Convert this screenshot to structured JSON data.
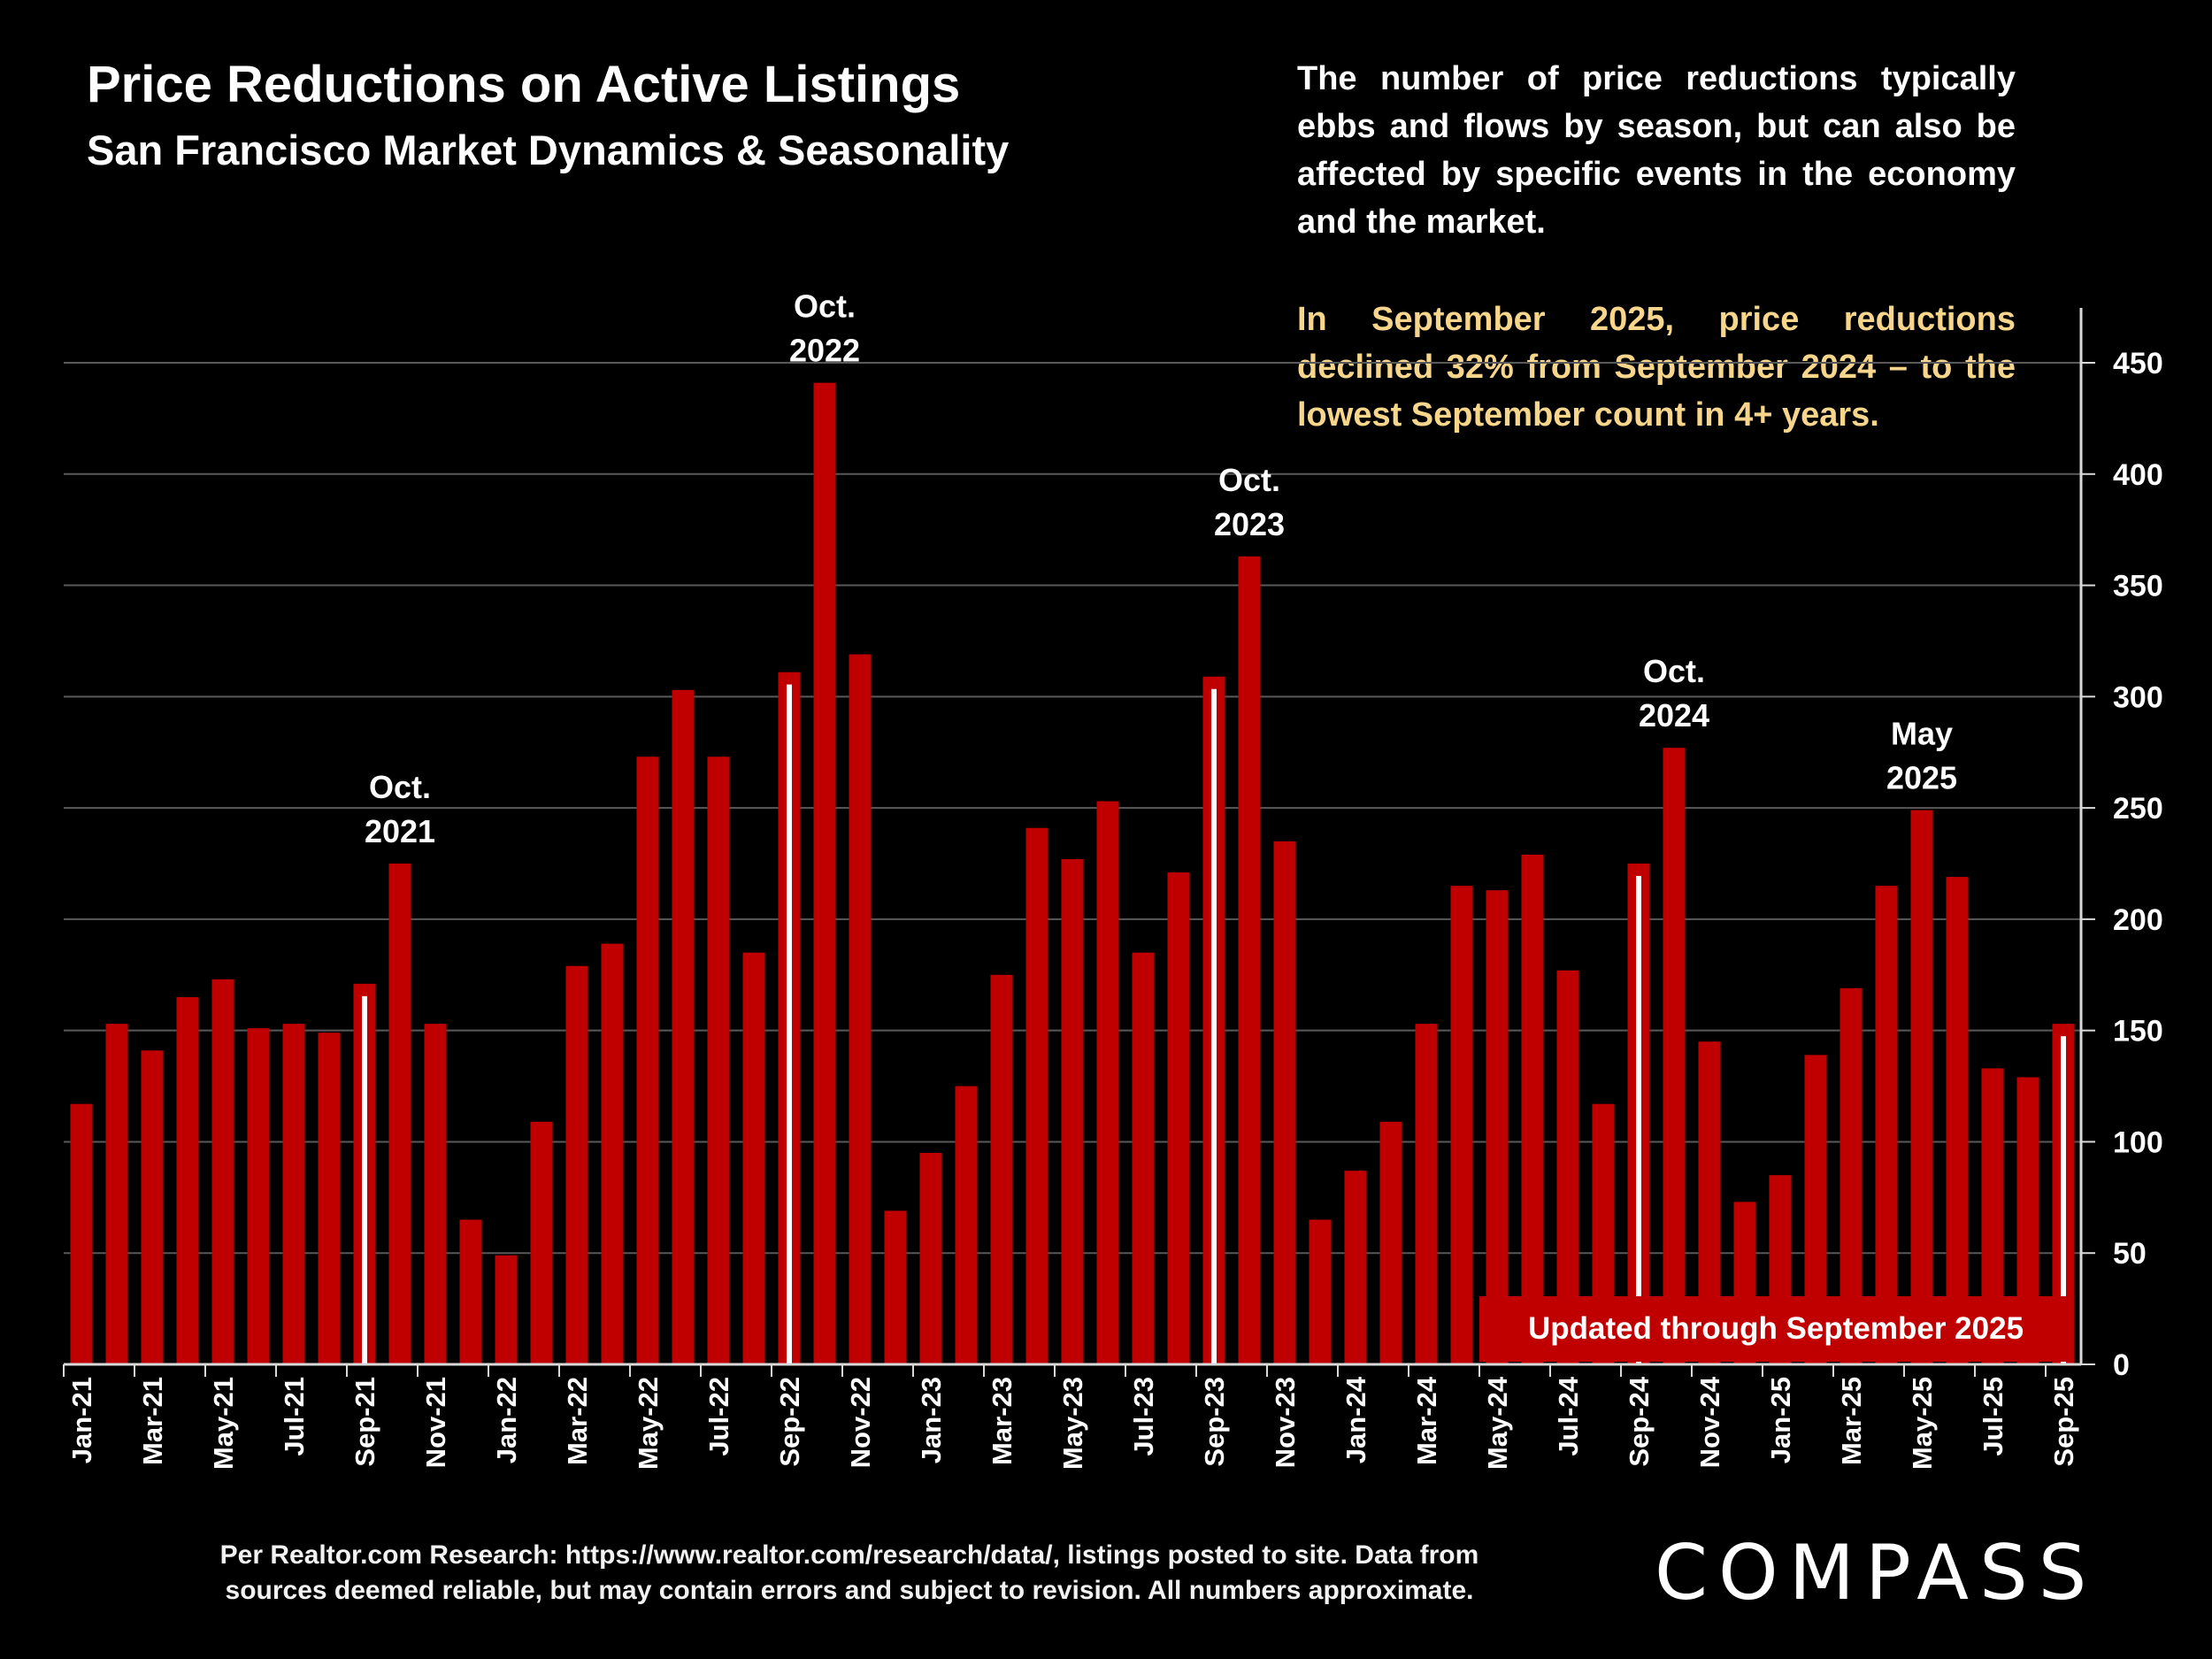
{
  "header": {
    "title": "Price Reductions on Active Listings",
    "subtitle": "San Francisco Market Dynamics & Seasonality"
  },
  "commentary": {
    "note": "The number of price reductions typically ebbs and flows by season, but can also be affected by specific events in the economy and the market.",
    "highlight": "In September 2025, price reductions declined 32% from September 2024 – to the lowest September count in 4+ years."
  },
  "badge": {
    "text": "Updated through September 2025"
  },
  "footer": {
    "source_line1": "Per Realtor.com Research:  https://www.realtor.com/research/data/, listings posted to site. Data from",
    "source_line2": "sources deemed reliable, but may contain errors and subject to revision. All numbers approximate.",
    "logo_text": "COMPASS"
  },
  "colors": {
    "background": "#000000",
    "bar": "#c00000",
    "highlight_text": "#f7d68c",
    "marker": "#ffffff",
    "grid": "#595959"
  },
  "chart_data": {
    "type": "bar",
    "title": "Price Reductions on Active Listings",
    "subtitle": "San Francisco Market Dynamics & Seasonality",
    "xlabel": "",
    "ylabel": "",
    "ylim": [
      0,
      450
    ],
    "yticks": [
      0,
      50,
      100,
      150,
      200,
      250,
      300,
      350,
      400,
      450
    ],
    "y_axis_side": "right",
    "grid": true,
    "categories": [
      "Jan-21",
      "Feb-21",
      "Mar-21",
      "Apr-21",
      "May-21",
      "Jun-21",
      "Jul-21",
      "Aug-21",
      "Sep-21",
      "Oct-21",
      "Nov-21",
      "Dec-21",
      "Jan-22",
      "Feb-22",
      "Mar-22",
      "Apr-22",
      "May-22",
      "Jun-22",
      "Jul-22",
      "Aug-22",
      "Sep-22",
      "Oct-22",
      "Nov-22",
      "Dec-22",
      "Jan-23",
      "Feb-23",
      "Mar-23",
      "Apr-23",
      "May-23",
      "Jun-23",
      "Jul-23",
      "Aug-23",
      "Sep-23",
      "Oct-23",
      "Nov-23",
      "Dec-23",
      "Jan-24",
      "Feb-24",
      "Mar-24",
      "Apr-24",
      "May-24",
      "Jun-24",
      "Jul-24",
      "Aug-24",
      "Sep-24",
      "Oct-24",
      "Nov-24",
      "Dec-24",
      "Jan-25",
      "Feb-25",
      "Mar-25",
      "Apr-25",
      "May-25",
      "Jun-25",
      "Jul-25",
      "Aug-25",
      "Sep-25"
    ],
    "tick_labels": [
      "Jan-21",
      "Mar-21",
      "May-21",
      "Jul-21",
      "Sep-21",
      "Nov-21",
      "Jan-22",
      "Mar-22",
      "May-22",
      "Jul-22",
      "Sep-22",
      "Nov-22",
      "Jan-23",
      "Mar-23",
      "May-23",
      "Jul-23",
      "Sep-23",
      "Nov-23",
      "Jan-24",
      "Mar-24",
      "May-24",
      "Jul-24",
      "Sep-24",
      "Nov-24",
      "Jan-25",
      "Mar-25",
      "May-25",
      "Jul-25",
      "Sep-25"
    ],
    "values": [
      117,
      153,
      141,
      165,
      173,
      151,
      153,
      149,
      171,
      225,
      153,
      65,
      49,
      109,
      179,
      189,
      273,
      303,
      273,
      185,
      311,
      441,
      319,
      69,
      95,
      125,
      175,
      241,
      227,
      253,
      185,
      221,
      309,
      363,
      235,
      65,
      87,
      109,
      153,
      215,
      213,
      229,
      177,
      117,
      225,
      277,
      145,
      73,
      85,
      139,
      169,
      215,
      249,
      219,
      133,
      129,
      153
    ],
    "september_markers": [
      "Sep-21",
      "Sep-22",
      "Sep-23",
      "Sep-24",
      "Sep-25"
    ],
    "annotations": [
      {
        "category": "Oct-21",
        "line1": "Oct.",
        "line2": "2021"
      },
      {
        "category": "Oct-22",
        "line1": "Oct.",
        "line2": "2022"
      },
      {
        "category": "Oct-23",
        "line1": "Oct.",
        "line2": "2023"
      },
      {
        "category": "Oct-24",
        "line1": "Oct.",
        "line2": "2024"
      },
      {
        "category": "May-25",
        "line1": "May",
        "line2": "2025"
      }
    ]
  }
}
